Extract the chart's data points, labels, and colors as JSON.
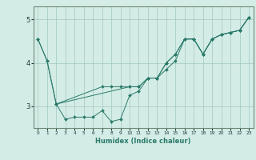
{
  "title": "",
  "xlabel": "Humidex (Indice chaleur)",
  "background_color": "#d4ece6",
  "grid_color": "#a0c8be",
  "line_color": "#2a7a6a",
  "marker_color": "#2a7a6a",
  "xlim": [
    -0.5,
    23.5
  ],
  "ylim": [
    2.5,
    5.3
  ],
  "yticks": [
    3,
    4,
    5
  ],
  "xticks": [
    0,
    1,
    2,
    3,
    4,
    5,
    6,
    7,
    8,
    9,
    10,
    11,
    12,
    13,
    14,
    15,
    16,
    17,
    18,
    19,
    20,
    21,
    22,
    23
  ],
  "series": [
    {
      "x": [
        0,
        1,
        2,
        3,
        4,
        5,
        6,
        7,
        8,
        9,
        10,
        11,
        12,
        13,
        14,
        15,
        16,
        17,
        18,
        19,
        20,
        21,
        22,
        23
      ],
      "y": [
        4.55,
        4.05,
        3.05,
        2.7,
        2.75,
        2.75,
        2.75,
        2.9,
        2.65,
        2.7,
        3.25,
        3.35,
        3.65,
        3.65,
        3.85,
        4.05,
        4.55,
        4.55,
        4.2,
        4.55,
        4.65,
        4.7,
        4.75,
        5.05
      ]
    },
    {
      "x": [
        0,
        1,
        2,
        7,
        8,
        9,
        10,
        11,
        12,
        13,
        14,
        15,
        16,
        17,
        18,
        19,
        20,
        21,
        22,
        23
      ],
      "y": [
        4.55,
        4.05,
        3.05,
        3.45,
        3.45,
        3.45,
        3.45,
        3.45,
        3.65,
        3.65,
        4.0,
        4.2,
        4.55,
        4.55,
        4.2,
        4.55,
        4.65,
        4.7,
        4.75,
        5.05
      ]
    },
    {
      "x": [
        2,
        10,
        11,
        12,
        13,
        14,
        15,
        16,
        17,
        18,
        19,
        20,
        21,
        22,
        23
      ],
      "y": [
        3.05,
        3.45,
        3.45,
        3.65,
        3.65,
        4.0,
        4.2,
        4.55,
        4.55,
        4.2,
        4.55,
        4.65,
        4.7,
        4.75,
        5.05
      ]
    }
  ]
}
